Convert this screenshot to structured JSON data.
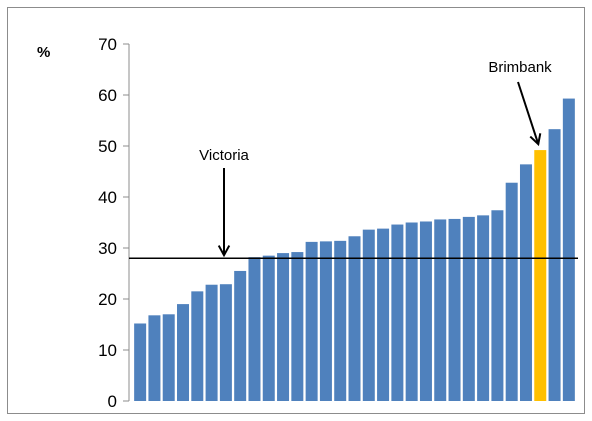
{
  "chart_data": {
    "type": "bar",
    "ylabel": "%",
    "ylim": [
      0,
      70
    ],
    "yticks": [
      0,
      10,
      20,
      30,
      40,
      50,
      60,
      70
    ],
    "grid": false,
    "values": [
      15.2,
      16.8,
      17.0,
      19.0,
      21.5,
      22.8,
      22.9,
      25.5,
      28.2,
      28.5,
      29.0,
      29.2,
      31.2,
      31.3,
      31.4,
      32.3,
      33.6,
      33.8,
      34.6,
      35.0,
      35.2,
      35.6,
      35.7,
      36.1,
      36.4,
      37.4,
      42.8,
      46.4,
      49.2,
      53.3,
      59.3
    ],
    "highlight_index": 28,
    "bar_color": "#4f81bd",
    "highlight_color": "#ffc000",
    "reference_line": {
      "label": "Victoria",
      "value": 28.0
    },
    "annotations": [
      {
        "label": "Victoria"
      },
      {
        "label": "Brimbank"
      }
    ]
  }
}
